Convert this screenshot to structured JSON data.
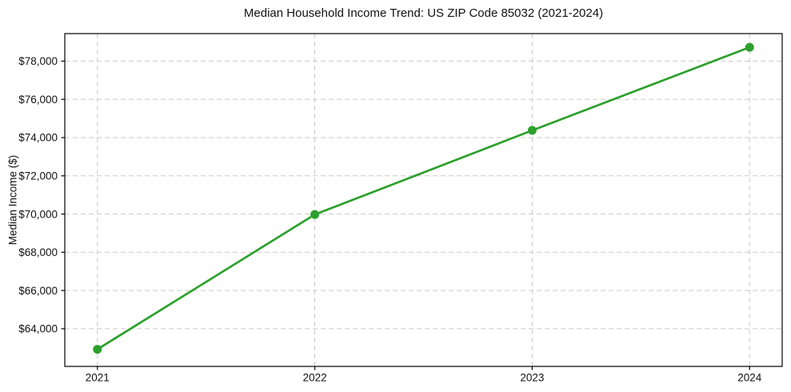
{
  "chart_data": {
    "type": "line",
    "title": "Median Household Income Trend: US ZIP Code 85032 (2021-2024)",
    "xlabel": "",
    "ylabel": "Median Income ($)",
    "x": [
      2021,
      2022,
      2023,
      2024
    ],
    "series": [
      {
        "name": "Median Household Income",
        "values": [
          62925,
          69975,
          74375,
          78725
        ],
        "color": "#2ca02c",
        "marker": "circle",
        "marker_radius": 5.5,
        "line_width": 2.7
      }
    ],
    "xtick_labels": [
      "2021",
      "2022",
      "2023",
      "2024"
    ],
    "yticks": [
      64000,
      66000,
      68000,
      70000,
      72000,
      74000,
      76000,
      78000
    ],
    "ytick_labels": [
      "$64,000",
      "$66,000",
      "$68,000",
      "$70,000",
      "$72,000",
      "$74,000",
      "$78,000"
    ],
    "ytick_labels_full": [
      "$64,000",
      "$66,000",
      "$68,000",
      "$70,000",
      "$72,000",
      "$74,000",
      "$76,000",
      "$78,000"
    ],
    "xlim": [
      2020.85,
      2024.15
    ],
    "ylim": [
      62030,
      79440
    ],
    "grid": true,
    "grid_color": "#c9c9c9",
    "grid_dash": "6 4",
    "background": "#ffffff",
    "text_color": "#111111",
    "spine_color": "#000000",
    "legend_position": "none"
  }
}
